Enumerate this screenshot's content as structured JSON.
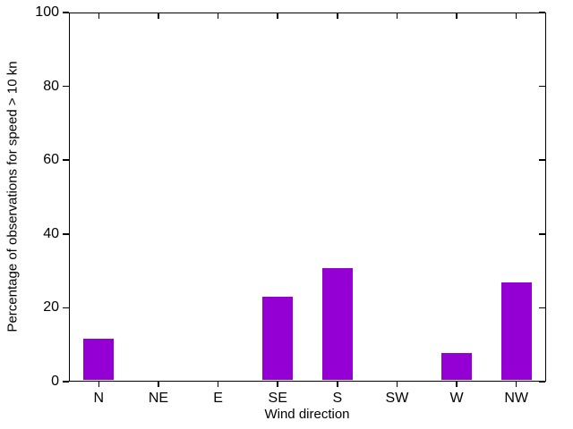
{
  "chart_data": {
    "type": "bar",
    "title": "",
    "categories": [
      "N",
      "NE",
      "E",
      "SE",
      "S",
      "SW",
      "W",
      "NW"
    ],
    "values": [
      11.7,
      0,
      0,
      23.0,
      30.7,
      0,
      7.8,
      26.9
    ],
    "xlabel": "Wind direction",
    "ylabel": "Percentage of observations for speed > 10 kn",
    "ylim": [
      0,
      100
    ],
    "yticks": [
      0,
      20,
      40,
      60,
      80,
      100
    ],
    "ytick_labels": [
      "0",
      "20",
      "40",
      "60",
      "80",
      "100"
    ],
    "legend_position": "none",
    "grid": false,
    "colors": {
      "bar": "#9400d3",
      "frame": "#000000",
      "text": "#000000",
      "background": "#ffffff"
    }
  }
}
